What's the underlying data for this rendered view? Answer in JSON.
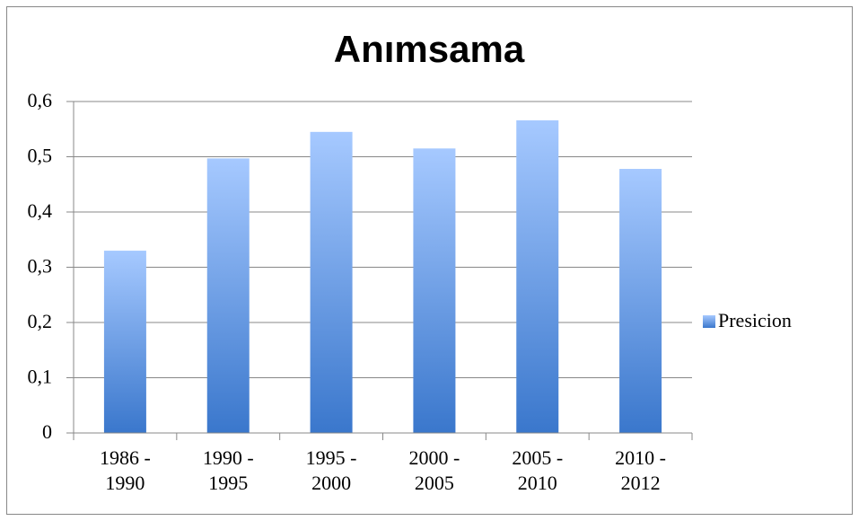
{
  "chart_data": {
    "type": "bar",
    "title": "Anımsama",
    "categories": [
      "1986 - 1990",
      "1990 - 1995",
      "1995 - 2000",
      "2000 - 2005",
      "2005 - 2010",
      "2010 - 2012"
    ],
    "series": [
      {
        "name": "Presicion",
        "color": "#4a86d8",
        "values": [
          0.33,
          0.497,
          0.545,
          0.515,
          0.566,
          0.478
        ]
      }
    ],
    "ylim": [
      0,
      0.6
    ],
    "yticks": [
      0,
      {
        "value": 0.1,
        "label": "0,1"
      },
      {
        "value": 0.2,
        "label": "0,2"
      },
      {
        "value": 0.3,
        "label": "0,3"
      },
      {
        "value": 0.4,
        "label": "0,4"
      },
      {
        "value": 0.5,
        "label": "0,5"
      },
      {
        "value": 0.6,
        "label": "0,6"
      }
    ],
    "grid": true,
    "legend": "right"
  }
}
